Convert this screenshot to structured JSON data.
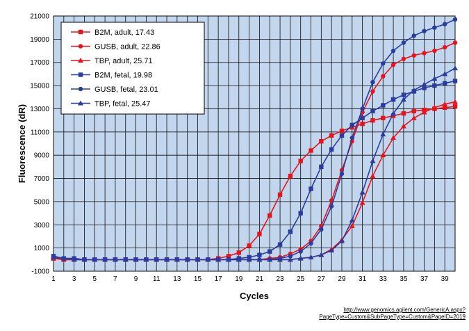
{
  "chart_data": {
    "type": "line",
    "title": "",
    "xlabel": "Cycles",
    "ylabel": "Fluorescence (dR)",
    "xlim": [
      1,
      40
    ],
    "ylim": [
      -1000,
      21000
    ],
    "xticks": [
      1,
      3,
      5,
      7,
      9,
      11,
      13,
      15,
      17,
      19,
      21,
      23,
      25,
      27,
      29,
      31,
      33,
      35,
      37,
      39
    ],
    "yticks": [
      -1000,
      1000,
      3000,
      5000,
      7000,
      9000,
      11000,
      13000,
      15000,
      17000,
      19000,
      21000
    ],
    "grid": true,
    "legend_position": "top-left",
    "x": [
      1,
      2,
      3,
      4,
      5,
      6,
      7,
      8,
      9,
      10,
      11,
      12,
      13,
      14,
      15,
      16,
      17,
      18,
      19,
      20,
      21,
      22,
      23,
      24,
      25,
      26,
      27,
      28,
      29,
      30,
      31,
      32,
      33,
      34,
      35,
      36,
      37,
      38,
      39,
      40
    ],
    "series": [
      {
        "name": "B2M, adult, 17.43",
        "color": "#e8141c",
        "marker": "square",
        "values": [
          100,
          0,
          0,
          0,
          0,
          0,
          0,
          0,
          0,
          0,
          0,
          0,
          0,
          0,
          0,
          0,
          100,
          300,
          600,
          1200,
          2200,
          3800,
          5600,
          7200,
          8500,
          9400,
          10200,
          10700,
          11100,
          11400,
          11700,
          12000,
          12200,
          12400,
          12600,
          12800,
          12900,
          13000,
          13100,
          13200
        ]
      },
      {
        "name": "GUSB, adult, 22.86",
        "color": "#e8141c",
        "marker": "circle",
        "values": [
          100,
          0,
          0,
          0,
          0,
          0,
          0,
          0,
          0,
          0,
          0,
          0,
          0,
          0,
          0,
          0,
          0,
          0,
          0,
          0,
          0,
          100,
          200,
          500,
          900,
          1600,
          2900,
          5100,
          7700,
          10200,
          12700,
          14500,
          15800,
          16800,
          17300,
          17600,
          17800,
          18000,
          18300,
          18700
        ]
      },
      {
        "name": "TBP, adult, 25.71",
        "color": "#e8141c",
        "marker": "triangle",
        "values": [
          100,
          0,
          0,
          0,
          0,
          0,
          0,
          0,
          0,
          0,
          0,
          0,
          0,
          0,
          0,
          0,
          0,
          0,
          0,
          0,
          0,
          0,
          0,
          0,
          100,
          200,
          400,
          900,
          1700,
          2900,
          4900,
          7200,
          9000,
          10500,
          11500,
          12200,
          12700,
          13100,
          13400,
          13600
        ]
      },
      {
        "name": "B2M, fetal, 19.98",
        "color": "#2b3c9e",
        "marker": "square",
        "values": [
          300,
          100,
          100,
          0,
          0,
          0,
          0,
          0,
          0,
          0,
          0,
          0,
          0,
          0,
          0,
          0,
          0,
          0,
          100,
          200,
          400,
          700,
          1300,
          2400,
          4000,
          6100,
          8000,
          9500,
          10700,
          11600,
          12200,
          12800,
          13300,
          13800,
          14200,
          14500,
          14800,
          15000,
          15200,
          15400
        ]
      },
      {
        "name": "GUSB, fetal, 23.01",
        "color": "#2b3c9e",
        "marker": "circle",
        "values": [
          200,
          100,
          0,
          0,
          0,
          0,
          0,
          0,
          0,
          0,
          0,
          0,
          0,
          0,
          0,
          0,
          0,
          0,
          0,
          0,
          0,
          0,
          100,
          300,
          700,
          1400,
          2600,
          4600,
          7400,
          10500,
          13000,
          15300,
          16900,
          18000,
          18700,
          19300,
          19700,
          20000,
          20300,
          20700
        ]
      },
      {
        "name": "TBP, fetal, 25.47",
        "color": "#2b3c9e",
        "marker": "triangle",
        "values": [
          200,
          100,
          0,
          0,
          0,
          0,
          0,
          0,
          0,
          0,
          0,
          0,
          0,
          0,
          0,
          0,
          0,
          0,
          0,
          0,
          0,
          0,
          0,
          0,
          100,
          200,
          400,
          800,
          1600,
          3400,
          5800,
          8500,
          10800,
          12600,
          13800,
          14600,
          15100,
          15600,
          16000,
          16500
        ]
      }
    ]
  },
  "source": {
    "line1": "http://www.genomics.agilent.com/GenericA.aspx?",
    "line2": "PageType=Custom&SubPageType=Custom&PageID=2019"
  }
}
